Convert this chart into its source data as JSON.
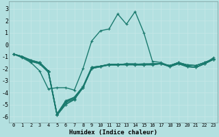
{
  "xlabel": "Humidex (Indice chaleur)",
  "background_color": "#b3e0e0",
  "line_color": "#1a7a6e",
  "xlim": [
    -0.5,
    23.5
  ],
  "ylim": [
    -6.5,
    3.6
  ],
  "yticks": [
    -6,
    -5,
    -4,
    -3,
    -2,
    -1,
    0,
    1,
    2,
    3
  ],
  "xticks": [
    0,
    1,
    2,
    3,
    4,
    5,
    6,
    7,
    8,
    9,
    10,
    11,
    12,
    13,
    14,
    15,
    16,
    17,
    18,
    19,
    20,
    21,
    22,
    23
  ],
  "series": [
    [
      -0.8,
      -1.0,
      -1.4,
      -1.5,
      -2.2,
      -5.8,
      -4.7,
      -4.4,
      -3.5,
      -1.9,
      -1.8,
      -1.65,
      -1.65,
      -1.65,
      -1.65,
      -1.65,
      -1.65,
      -1.6,
      -1.75,
      -1.5,
      -1.7,
      -1.75,
      -1.5,
      -1.2
    ],
    [
      -0.8,
      -1.0,
      -1.3,
      -1.5,
      -2.2,
      -5.85,
      -4.85,
      -4.5,
      -3.6,
      -2.0,
      -1.8,
      -1.7,
      -1.7,
      -1.6,
      -1.6,
      -1.7,
      -1.6,
      -1.6,
      -1.8,
      -1.6,
      -1.8,
      -1.9,
      -1.6,
      -1.25
    ],
    [
      -0.8,
      -1.0,
      -1.4,
      -1.6,
      -2.3,
      -5.9,
      -5.0,
      -4.55,
      -3.6,
      -2.0,
      -1.85,
      -1.7,
      -1.7,
      -1.7,
      -1.7,
      -1.7,
      -1.7,
      -1.6,
      -1.85,
      -1.6,
      -1.85,
      -1.9,
      -1.6,
      -1.25
    ],
    [
      -0.8,
      -1.0,
      -1.4,
      -1.6,
      -2.3,
      -5.9,
      -5.0,
      -4.6,
      -3.6,
      -2.0,
      -1.85,
      -1.7,
      -1.7,
      -1.6,
      -1.7,
      -1.7,
      -1.6,
      -1.6,
      -1.85,
      -1.6,
      -1.85,
      -1.9,
      -1.6,
      -1.25
    ],
    [
      -0.8,
      -1.0,
      -1.4,
      -1.5,
      -2.2,
      -5.8,
      -4.8,
      -4.4,
      -3.6,
      -1.9,
      -1.8,
      -1.65,
      -1.65,
      -1.65,
      -1.65,
      -1.65,
      -1.65,
      -1.6,
      -1.75,
      -1.5,
      -1.7,
      -1.75,
      -1.5,
      -1.2
    ],
    [
      -0.8,
      -1.0,
      -1.3,
      -1.5,
      -2.2,
      -5.8,
      -4.7,
      -4.4,
      -3.5,
      -1.9,
      -1.8,
      -1.65,
      -1.65,
      -1.65,
      -1.65,
      -1.6,
      -1.6,
      -1.6,
      -1.75,
      -1.5,
      -1.7,
      -1.75,
      -1.5,
      -1.2
    ],
    [
      -0.8,
      -1.1,
      -1.5,
      -2.2,
      -3.7,
      -3.6,
      -3.6,
      -3.8,
      -2.0,
      0.3,
      1.15,
      1.3,
      2.55,
      1.7,
      2.75,
      1.0,
      -1.4,
      -1.5,
      -1.8,
      -1.5,
      -1.8,
      -1.9,
      -1.6,
      -1.1
    ]
  ]
}
